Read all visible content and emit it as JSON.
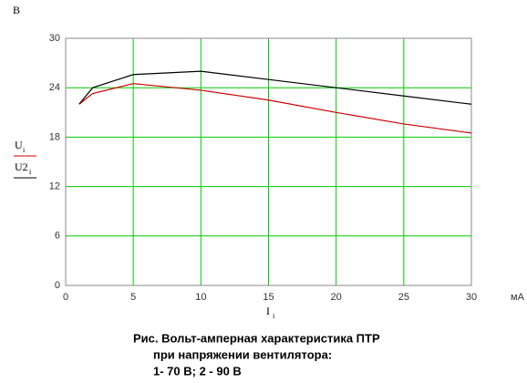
{
  "chart_data": {
    "type": "line",
    "y_unit": "В",
    "x_unit": "мА",
    "x_label": "I",
    "x_label_sub": "i",
    "caption": [
      "Рис.    Вольт-амперная характеристика ПТР",
      "при напряжении вентилятора:",
      "1- 70 В;    2 - 90 В"
    ],
    "x": [
      1,
      2,
      5,
      10,
      15,
      20,
      25,
      30
    ],
    "series": [
      {
        "name": "U",
        "subscript": "i",
        "color": "#cc0000",
        "values": [
          22,
          23.3,
          24.5,
          23.7,
          22.5,
          21,
          19.6,
          18.5
        ]
      },
      {
        "name": "U2",
        "subscript": "i",
        "color": "#000000",
        "values": [
          22,
          24,
          25.6,
          26,
          25,
          24,
          23,
          22
        ]
      }
    ],
    "xlim": [
      0,
      30
    ],
    "xticks": [
      0,
      5,
      10,
      15,
      20,
      25,
      30
    ],
    "ylim": [
      0,
      30
    ],
    "yticks": [
      0,
      6,
      12,
      18,
      24,
      30
    ],
    "grid": true,
    "grid_color": "#00cc00"
  }
}
